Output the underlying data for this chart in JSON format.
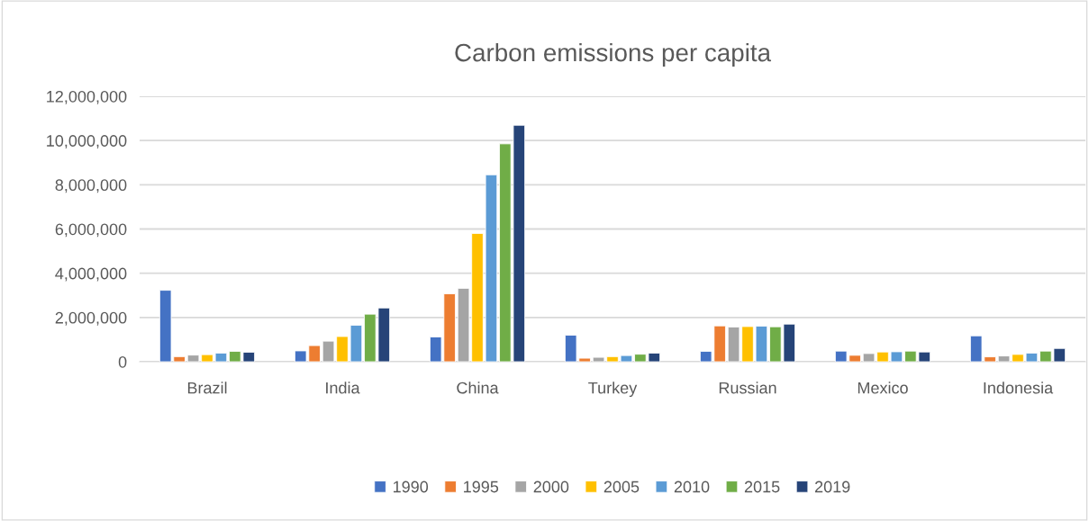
{
  "chart_data": {
    "type": "bar",
    "title": "Carbon emissions per capita",
    "categories": [
      "Brazil",
      "India",
      "China",
      "Turkey",
      "Russian",
      "Mexico",
      "Indonesia"
    ],
    "series": [
      {
        "name": "1990",
        "color": "#4472c4",
        "values": [
          3230000,
          490000,
          1120000,
          1200000,
          470000,
          480000,
          1170000
        ]
      },
      {
        "name": "1995",
        "color": "#ed7d31",
        "values": [
          230000,
          730000,
          3070000,
          160000,
          1620000,
          290000,
          220000
        ]
      },
      {
        "name": "2000",
        "color": "#a5a5a5",
        "values": [
          300000,
          930000,
          3320000,
          200000,
          1570000,
          370000,
          260000
        ]
      },
      {
        "name": "2005",
        "color": "#ffc000",
        "values": [
          320000,
          1140000,
          5800000,
          230000,
          1590000,
          440000,
          330000
        ]
      },
      {
        "name": "2010",
        "color": "#5b9bd5",
        "values": [
          390000,
          1650000,
          8450000,
          280000,
          1610000,
          450000,
          390000
        ]
      },
      {
        "name": "2015",
        "color": "#70ad47",
        "values": [
          470000,
          2150000,
          9850000,
          340000,
          1580000,
          480000,
          480000
        ]
      },
      {
        "name": "2019",
        "color": "#264478",
        "values": [
          430000,
          2430000,
          10690000,
          390000,
          1700000,
          440000,
          600000
        ]
      }
    ],
    "ylim": [
      0,
      12000000
    ],
    "yticks": [
      {
        "value": 0,
        "label": "0"
      },
      {
        "value": 2000000,
        "label": "2,000,000"
      },
      {
        "value": 4000000,
        "label": "4,000,000"
      },
      {
        "value": 6000000,
        "label": "6,000,000"
      },
      {
        "value": 8000000,
        "label": "8,000,000"
      },
      {
        "value": 10000000,
        "label": "10,000,000"
      },
      {
        "value": 12000000,
        "label": "12,000,000"
      }
    ],
    "grid": "y",
    "legend": "bottom"
  }
}
